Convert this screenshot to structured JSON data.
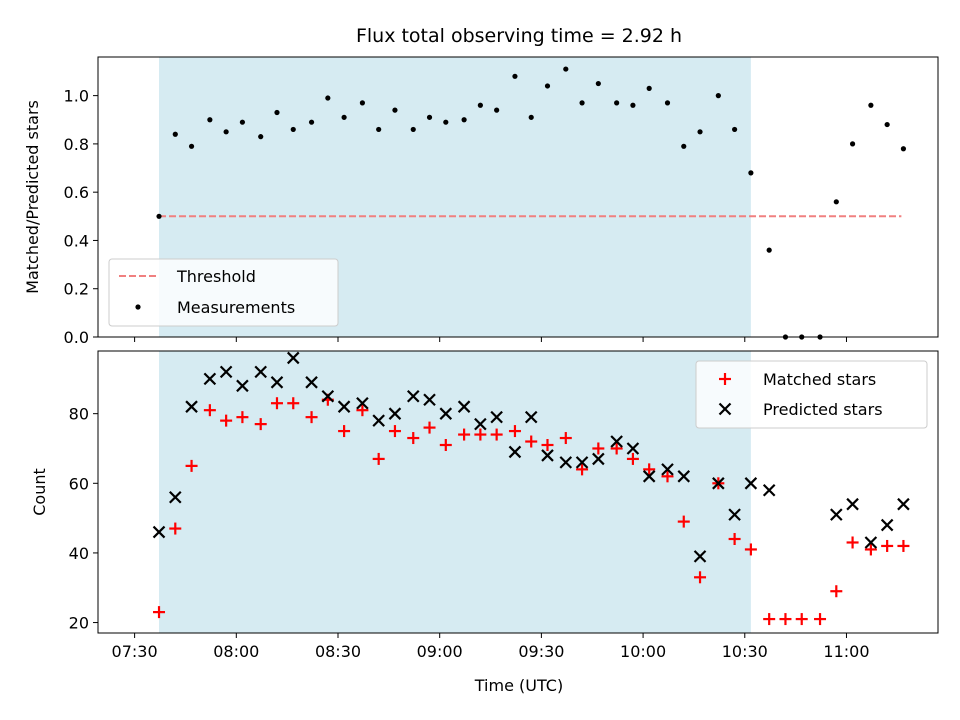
{
  "chart_data": {
    "title": "Flux total observing time = 2.92 h",
    "xlabel": "Time (UTC)",
    "x_ticks": [
      "07:30",
      "08:00",
      "08:30",
      "09:00",
      "09:30",
      "10:00",
      "10:30",
      "11:00"
    ],
    "x_tick_hours": [
      7.5,
      8.0,
      8.5,
      9.0,
      9.5,
      10.0,
      10.5,
      11.0
    ],
    "x_range": [
      7.32,
      11.45
    ],
    "observing_window": [
      7.62,
      10.53
    ],
    "colors": {
      "window": "#add8e6",
      "threshold": "#f08080",
      "matched": "#ff0000",
      "predicted": "#000000",
      "measurement": "#000000"
    },
    "top": {
      "type": "scatter",
      "ylabel": "Matched/Predicted stars",
      "ylim": [
        0.0,
        1.16
      ],
      "y_ticks": [
        "0.0",
        "0.2",
        "0.4",
        "0.6",
        "0.8",
        "1.0"
      ],
      "y_tick_values": [
        0.0,
        0.2,
        0.4,
        0.6,
        0.8,
        1.0
      ],
      "threshold": {
        "value": 0.5,
        "x_range": [
          7.62,
          11.27
        ]
      },
      "legend_position": "lower-left",
      "legend": [
        "Threshold",
        "Measurements"
      ],
      "x": [
        7.62,
        7.7,
        7.78,
        7.87,
        7.95,
        8.03,
        8.12,
        8.2,
        8.28,
        8.37,
        8.45,
        8.53,
        8.62,
        8.7,
        8.78,
        8.87,
        8.95,
        9.03,
        9.12,
        9.2,
        9.28,
        9.37,
        9.45,
        9.53,
        9.62,
        9.7,
        9.78,
        9.87,
        9.95,
        10.03,
        10.12,
        10.2,
        10.28,
        10.37,
        10.45,
        10.53,
        10.62,
        10.7,
        10.78,
        10.87,
        10.95,
        11.03,
        11.12,
        11.2,
        11.28
      ],
      "y": [
        0.5,
        0.84,
        0.79,
        0.9,
        0.85,
        0.89,
        0.83,
        0.93,
        0.86,
        0.89,
        0.99,
        0.91,
        0.97,
        0.86,
        0.94,
        0.86,
        0.91,
        0.89,
        0.9,
        0.96,
        0.94,
        1.08,
        0.91,
        1.04,
        1.11,
        0.97,
        1.05,
        0.97,
        0.96,
        1.03,
        0.97,
        0.79,
        0.85,
        1.0,
        0.86,
        0.68,
        0.36,
        0.0,
        0.0,
        0.0,
        0.56,
        0.8,
        0.96,
        0.88,
        0.78
      ]
    },
    "bottom": {
      "type": "scatter",
      "ylabel": "Count",
      "ylim": [
        17,
        98
      ],
      "y_ticks": [
        "20",
        "40",
        "60",
        "80"
      ],
      "y_tick_values": [
        20,
        40,
        60,
        80
      ],
      "legend_position": "upper-right",
      "legend": [
        "Matched stars",
        "Predicted stars"
      ],
      "series": [
        {
          "name": "Matched stars",
          "marker": "+",
          "x": [
            7.62,
            7.7,
            7.78,
            7.87,
            7.95,
            8.03,
            8.12,
            8.2,
            8.28,
            8.37,
            8.45,
            8.53,
            8.62,
            8.7,
            8.78,
            8.87,
            8.95,
            9.03,
            9.12,
            9.2,
            9.28,
            9.37,
            9.45,
            9.53,
            9.62,
            9.7,
            9.78,
            9.87,
            9.95,
            10.03,
            10.12,
            10.2,
            10.28,
            10.37,
            10.45,
            10.53,
            10.62,
            10.7,
            10.78,
            10.87,
            10.95,
            11.03,
            11.12,
            11.2,
            11.28
          ],
          "y": [
            23,
            47,
            65,
            81,
            78,
            79,
            77,
            83,
            83,
            79,
            84,
            75,
            81,
            67,
            75,
            73,
            76,
            71,
            74,
            74,
            74,
            75,
            72,
            71,
            73,
            64,
            70,
            70,
            67,
            64,
            62,
            49,
            33,
            60,
            44,
            41,
            21,
            21,
            21,
            21,
            29,
            43,
            41,
            42,
            42
          ]
        },
        {
          "name": "Predicted stars",
          "marker": "x",
          "x": [
            7.62,
            7.7,
            7.78,
            7.87,
            7.95,
            8.03,
            8.12,
            8.2,
            8.28,
            8.37,
            8.45,
            8.53,
            8.62,
            8.7,
            8.78,
            8.87,
            8.95,
            9.03,
            9.12,
            9.2,
            9.28,
            9.37,
            9.45,
            9.53,
            9.62,
            9.7,
            9.78,
            9.87,
            9.95,
            10.03,
            10.12,
            10.2,
            10.28,
            10.37,
            10.45,
            10.53,
            10.62,
            10.95,
            11.03,
            11.12,
            11.2,
            11.28
          ],
          "y": [
            46,
            56,
            82,
            90,
            92,
            88,
            92,
            89,
            96,
            89,
            85,
            82,
            83,
            78,
            80,
            85,
            84,
            80,
            82,
            77,
            79,
            69,
            79,
            68,
            66,
            66,
            67,
            72,
            70,
            62,
            64,
            62,
            39,
            60,
            51,
            60,
            58,
            51,
            54,
            43,
            48,
            54
          ]
        }
      ]
    }
  }
}
